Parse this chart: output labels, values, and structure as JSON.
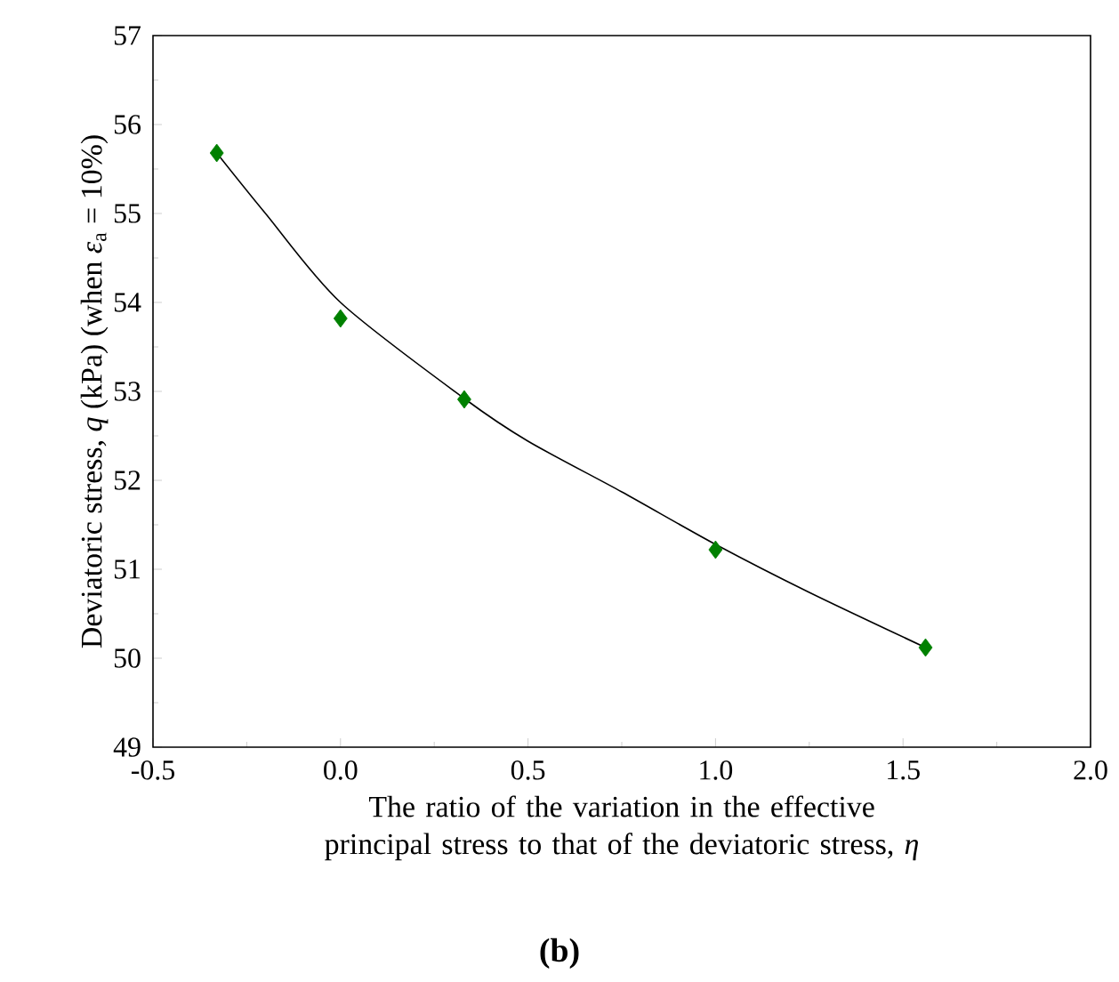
{
  "chart_data": {
    "type": "scatter",
    "xlabel": "The ratio of the variation in the effective principal stress to that of the deviatoric stress, *η*",
    "ylabel": "Deviatoric stress, *q* (kPa) (when *ε*$_{a}$ = 10%)",
    "annotations": [
      "(b)"
    ],
    "xlim": [
      -0.5,
      2.0
    ],
    "ylim": [
      49,
      57
    ],
    "xticks": [
      {
        "value": -0.5,
        "label": "-0.5"
      },
      {
        "value": 0,
        "label": "0.0"
      },
      {
        "value": 0.5,
        "label": "0.5"
      },
      {
        "value": 1,
        "label": "1.0"
      },
      {
        "value": 1.5,
        "label": "1.5"
      },
      {
        "value": 2,
        "label": "2.0"
      }
    ],
    "yticks": [
      49,
      50,
      51,
      52,
      53,
      54,
      55,
      56,
      57
    ],
    "grid": false,
    "series": [
      {
        "type": "line",
        "color": "#000000",
        "marker": "none",
        "line_style": "solid",
        "x": [
          -0.33,
          -0.2,
          0,
          0.33,
          0.5,
          0.75,
          1.0,
          1.25,
          1.56
        ],
        "values": [
          55.68,
          55.0,
          54.0,
          52.92,
          52.44,
          51.87,
          51.28,
          50.74,
          50.12
        ]
      },
      {
        "color": "#008000",
        "marker": "diamond",
        "x": [
          -0.33,
          0,
          0.33,
          1.0,
          1.56
        ],
        "values": [
          55.68,
          53.82,
          52.91,
          51.22,
          50.12
        ]
      }
    ]
  }
}
